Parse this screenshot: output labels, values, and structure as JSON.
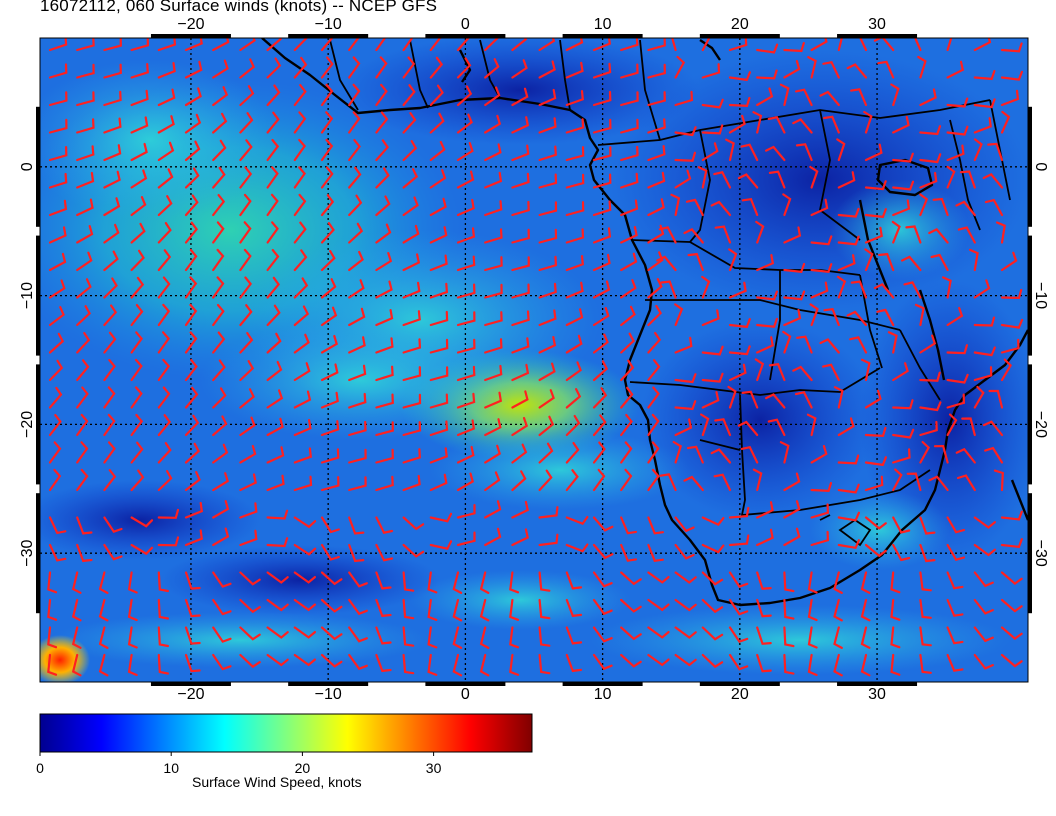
{
  "title": "16072112, 060 Surface winds (knots) -- NCEP GFS",
  "map": {
    "lon_range": [
      -31,
      41
    ],
    "lat_range": [
      -40,
      10
    ],
    "lon_ticks": [
      -20,
      -10,
      0,
      10,
      20,
      30
    ],
    "lat_ticks": [
      0,
      -10,
      -20,
      -30
    ],
    "lon_tick_labels": [
      "−20",
      "−10",
      "0",
      "10",
      "20",
      "30"
    ],
    "lat_tick_labels": [
      "0",
      "−10",
      "−20",
      "−30"
    ],
    "grid": true,
    "barb_color": "#ff2020",
    "coastline_color": "#000000",
    "region": "South Atlantic and southern Africa"
  },
  "colorbar": {
    "label": "Surface Wind Speed, knots",
    "min": 0,
    "max": 37.5,
    "ticks": [
      0,
      10,
      20,
      30
    ],
    "tick_labels": [
      "0",
      "10",
      "20",
      "30"
    ],
    "colors": [
      "#00008f",
      "#0000ff",
      "#0080ff",
      "#00ffff",
      "#80ff80",
      "#ffff00",
      "#ff8000",
      "#ff0000",
      "#800000"
    ]
  }
}
